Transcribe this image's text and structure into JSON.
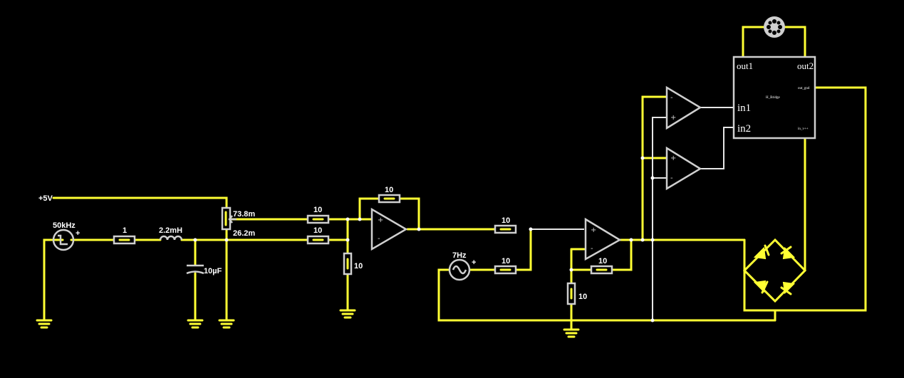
{
  "source": {
    "freq": "50kHz",
    "plus": "+"
  },
  "ac_source": {
    "freq": "7Hz",
    "plus": "+"
  },
  "supply": {
    "label": "+5V"
  },
  "r_series": "1",
  "inductor": "2.2mH",
  "capacitor": "10µF",
  "pot": {
    "upper": "73.8m",
    "lower": "26.2m"
  },
  "r_in_top": "10",
  "r_in_bottom": "10",
  "r_feedback1": "10",
  "r_shunt1": "10",
  "r_in2_top": "10",
  "r_in2_bottom": "10",
  "r_feedback2": "10",
  "r_shunt2": "10",
  "opamp_signs": {
    "minus": "-",
    "plus": "+"
  },
  "hbridge": {
    "name": "H_Bridge",
    "out1": "out1",
    "out2": "out2",
    "in1": "in1",
    "in2": "in2",
    "out_gnd": "out_gnd",
    "in_vcc": "in_v++"
  },
  "colors": {
    "wire": "#ffff33",
    "component": "#cfcfcf",
    "background": "#000000"
  },
  "icons": [
    "ground-icon",
    "motor-icon",
    "diode-icon",
    "pulse-source-icon",
    "sine-source-icon"
  ]
}
